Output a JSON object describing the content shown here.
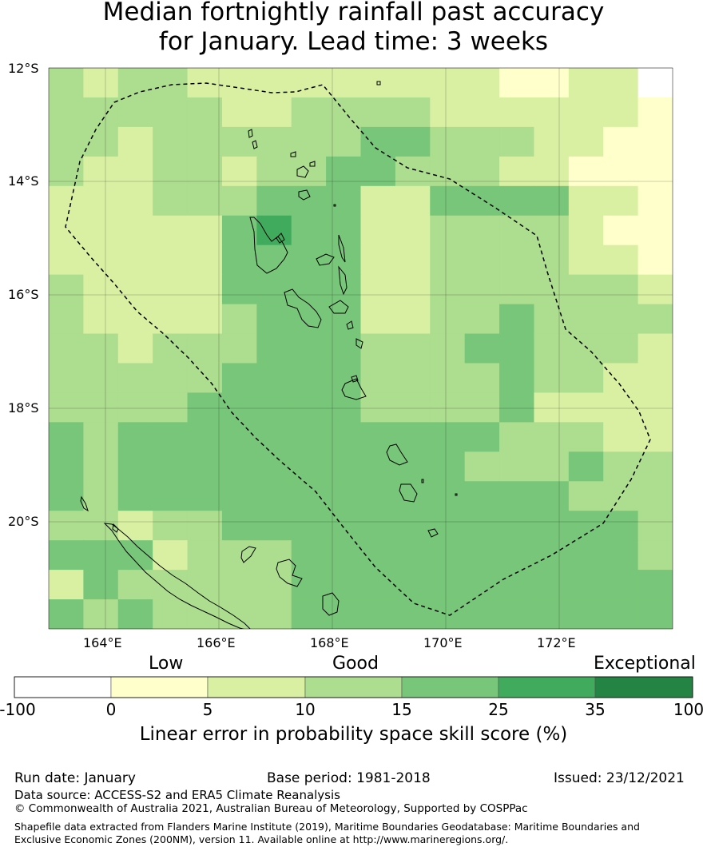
{
  "title": {
    "line1": "Median fortnightly rainfall past accuracy",
    "line2": "for January. Lead time: 3 weeks"
  },
  "map": {
    "lat_labels": [
      "12°S",
      "14°S",
      "16°S",
      "18°S",
      "20°S"
    ],
    "lon_labels": [
      "164°E",
      "166°E",
      "168°E",
      "170°E",
      "172°E"
    ],
    "lat_range": [
      -21.9,
      -12.0
    ],
    "lon_range": [
      163.0,
      174.0
    ],
    "grid_resolution_deg": 0.84,
    "eez_boundary": "dashed",
    "skill_classes_note": "grid cells colored by skill score class"
  },
  "colorbar": {
    "categories": [
      "Low",
      "Good",
      "Exceptional"
    ],
    "ticks": [
      "-100",
      "0",
      "5",
      "10",
      "15",
      "25",
      "35",
      "100"
    ],
    "colors": [
      "#ffffff",
      "#ffffcc",
      "#d9f0a3",
      "#addd8e",
      "#78c679",
      "#41ab5d",
      "#238443"
    ],
    "label": "Linear error in probability space skill score (%)"
  },
  "info": {
    "run_date": "Run date: January",
    "base_period": "Base period: 1981-2018",
    "issued": "Issued: 23/12/2021",
    "data_source": "Data source: ACCESS-S2 and ERA5 Climate Reanalysis",
    "copyright": "© Commonwealth of Australia 2021, Australian Bureau of Meteorology, Supported by COSPPac",
    "shapefile": "Shapefile data extracted from Flanders Marine Institute (2019), Maritime Boundaries Geodatabase: Maritime Boundaries and Exclusive Economic Zones (200NM), version 11. Available online at http://www.marineregions.org/."
  }
}
